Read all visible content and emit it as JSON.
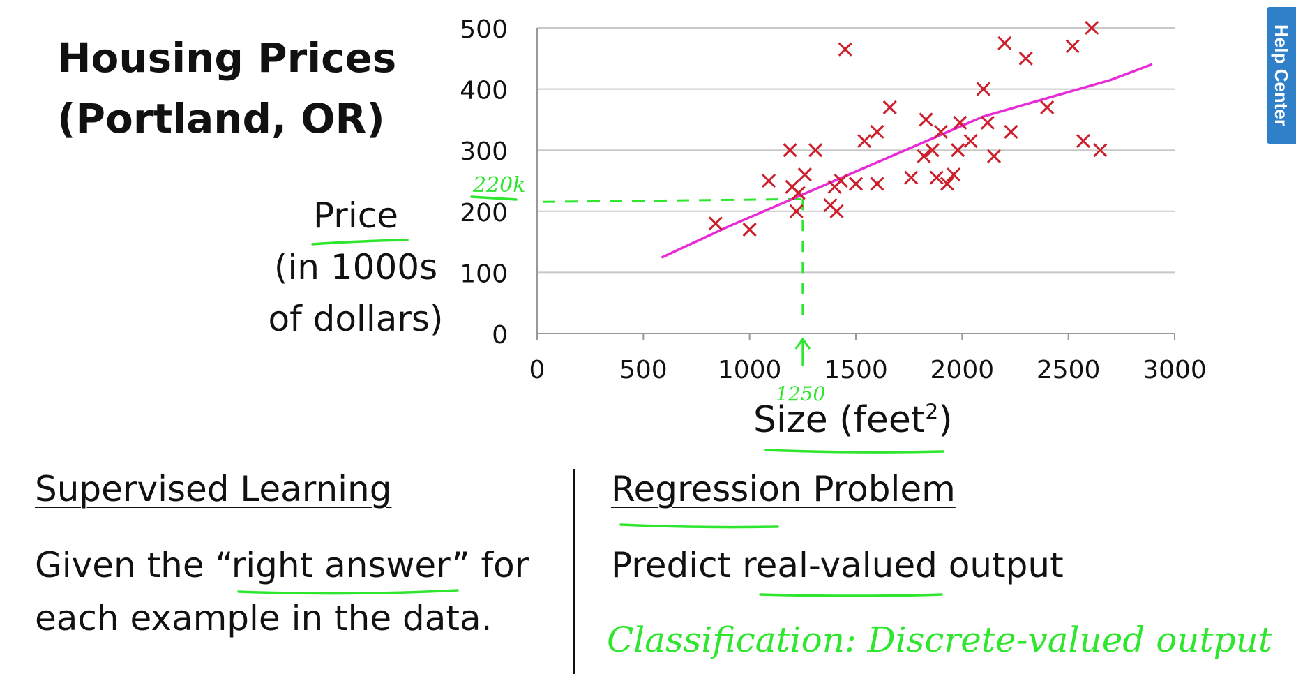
{
  "slide": {
    "title_line1": "Housing Prices",
    "title_line2": "(Portland, OR)",
    "ylabel_line1": "Price",
    "ylabel_line2": "(in 1000s",
    "ylabel_line3": "of dollars)",
    "xlabel": "Size (feet",
    "xlabel_sup": "2",
    "xlabel_close": ")",
    "left_heading": "Supervised Learning",
    "left_body_line1": "Given the “right answer” for",
    "left_body_line2": "each example in the data.",
    "right_heading": "Regression Problem",
    "right_body": "Predict real-valued output"
  },
  "annotations": {
    "price_note": "220k",
    "size_note": "1250",
    "classification_note": "Classification: Discrete-valued output"
  },
  "help_center": {
    "label": "Help Center"
  },
  "colors": {
    "points": "#cc1f2b",
    "fit_line": "#e82bd6",
    "annotation": "#2ee62e",
    "grid": "#c8c8c8",
    "help_tab": "#2f7fc9"
  },
  "chart_data": {
    "type": "scatter",
    "xlim": [
      0,
      3000
    ],
    "ylim": [
      0,
      500
    ],
    "xticks": [
      0,
      500,
      1000,
      1500,
      2000,
      2500,
      3000
    ],
    "yticks": [
      0,
      100,
      200,
      300,
      400,
      500
    ],
    "grid": true,
    "points": [
      {
        "x": 840,
        "y": 180
      },
      {
        "x": 1000,
        "y": 170
      },
      {
        "x": 1090,
        "y": 250
      },
      {
        "x": 1190,
        "y": 300
      },
      {
        "x": 1200,
        "y": 240
      },
      {
        "x": 1230,
        "y": 230
      },
      {
        "x": 1220,
        "y": 200
      },
      {
        "x": 1260,
        "y": 260
      },
      {
        "x": 1310,
        "y": 300
      },
      {
        "x": 1380,
        "y": 210
      },
      {
        "x": 1400,
        "y": 240
      },
      {
        "x": 1410,
        "y": 200
      },
      {
        "x": 1430,
        "y": 250
      },
      {
        "x": 1450,
        "y": 465
      },
      {
        "x": 1500,
        "y": 245
      },
      {
        "x": 1540,
        "y": 315
      },
      {
        "x": 1600,
        "y": 330
      },
      {
        "x": 1600,
        "y": 245
      },
      {
        "x": 1660,
        "y": 370
      },
      {
        "x": 1760,
        "y": 255
      },
      {
        "x": 1820,
        "y": 290
      },
      {
        "x": 1830,
        "y": 350
      },
      {
        "x": 1860,
        "y": 300
      },
      {
        "x": 1880,
        "y": 255
      },
      {
        "x": 1900,
        "y": 330
      },
      {
        "x": 1930,
        "y": 245
      },
      {
        "x": 1960,
        "y": 260
      },
      {
        "x": 1980,
        "y": 300
      },
      {
        "x": 1990,
        "y": 345
      },
      {
        "x": 2040,
        "y": 315
      },
      {
        "x": 2100,
        "y": 400
      },
      {
        "x": 2120,
        "y": 345
      },
      {
        "x": 2150,
        "y": 290
      },
      {
        "x": 2200,
        "y": 475
      },
      {
        "x": 2230,
        "y": 330
      },
      {
        "x": 2300,
        "y": 450
      },
      {
        "x": 2400,
        "y": 370
      },
      {
        "x": 2520,
        "y": 470
      },
      {
        "x": 2570,
        "y": 315
      },
      {
        "x": 2610,
        "y": 500
      },
      {
        "x": 2650,
        "y": 300
      }
    ],
    "fit_curve": {
      "x": [
        590,
        900,
        1200,
        1500,
        1800,
        2100,
        2400,
        2700,
        2890
      ],
      "y": [
        125,
        175,
        220,
        265,
        310,
        355,
        385,
        415,
        440
      ]
    },
    "guides": {
      "x": 1250,
      "y": 220
    }
  }
}
